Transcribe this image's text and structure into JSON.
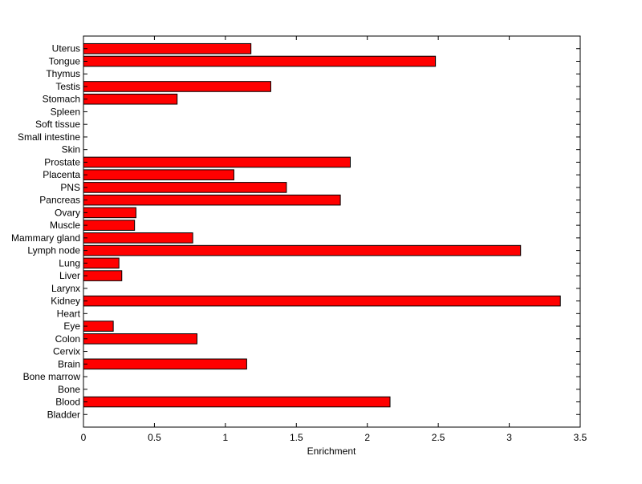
{
  "chart_data": {
    "type": "bar",
    "orientation": "horizontal",
    "title": "",
    "xlabel": "Enrichment",
    "ylabel": "",
    "xlim": [
      0,
      3.5
    ],
    "xticks": [
      0,
      0.5,
      1,
      1.5,
      2,
      2.5,
      3,
      3.5
    ],
    "xtick_labels": [
      "0",
      "0.5",
      "1",
      "1.5",
      "2",
      "2.5",
      "3",
      "3.5"
    ],
    "grid": false,
    "bar_color": "#ff0000",
    "edge_color": "#000000",
    "categories": [
      "Bladder",
      "Blood",
      "Bone",
      "Bone marrow",
      "Brain",
      "Cervix",
      "Colon",
      "Eye",
      "Heart",
      "Kidney",
      "Larynx",
      "Liver",
      "Lung",
      "Lymph node",
      "Mammary gland",
      "Muscle",
      "Ovary",
      "Pancreas",
      "PNS",
      "Placenta",
      "Prostate",
      "Skin",
      "Small intestine",
      "Soft tissue",
      "Spleen",
      "Stomach",
      "Testis",
      "Thymus",
      "Tongue",
      "Uterus"
    ],
    "values": [
      0,
      2.16,
      0,
      0,
      1.15,
      0,
      0.8,
      0.21,
      0,
      3.36,
      0,
      0.27,
      0.25,
      3.08,
      0.77,
      0.36,
      0.37,
      1.81,
      1.43,
      1.06,
      1.88,
      0,
      0,
      0,
      0,
      0.66,
      1.32,
      0,
      2.48,
      1.18
    ]
  }
}
